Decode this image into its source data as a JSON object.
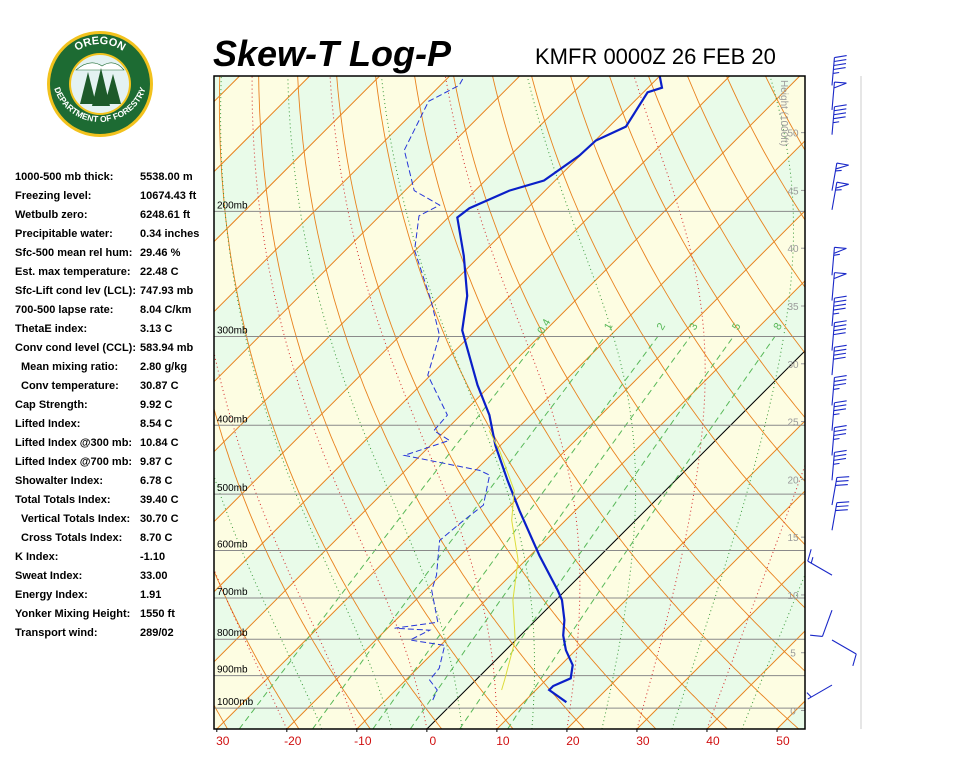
{
  "logo": {
    "top": "OREGON",
    "bottom": "DEPARTMENT OF FORESTRY"
  },
  "indices": [
    {
      "label": "1000-500 mb thick:",
      "value": "5538.00 m"
    },
    {
      "label": "Freezing level:",
      "value": "10674.43 ft"
    },
    {
      "label": "Wetbulb zero:",
      "value": "6248.61 ft"
    },
    {
      "label": "Precipitable water:",
      "value": "0.34 inches"
    },
    {
      "label": "Sfc-500 mean rel hum:",
      "value": "29.46 %"
    },
    {
      "label": "Est. max temperature:",
      "value": "22.48 C"
    },
    {
      "label": "Sfc-Lift cond lev (LCL):",
      "value": "747.93 mb"
    },
    {
      "label": "700-500 lapse rate:",
      "value": "8.04 C/km"
    },
    {
      "label": "ThetaE index:",
      "value": "3.13 C"
    },
    {
      "label": "Conv cond level (CCL):",
      "value": "583.94 mb",
      "sub": [
        {
          "label": "Mean mixing ratio:",
          "value": "2.80 g/kg"
        },
        {
          "label": "Conv temperature:",
          "value": "30.87 C"
        }
      ]
    },
    {
      "label": "Cap Strength:",
      "value": "9.92 C"
    },
    {
      "label": "Lifted Index:",
      "value": "8.54 C"
    },
    {
      "label": "Lifted Index @300 mb:",
      "value": "10.84 C"
    },
    {
      "label": "Lifted Index @700 mb:",
      "value": "9.87 C"
    },
    {
      "label": "Showalter Index:",
      "value": "6.78 C"
    },
    {
      "label": "Total Totals Index:",
      "value": "39.40 C",
      "sub": [
        {
          "label": "Vertical Totals Index:",
          "value": "30.70 C"
        },
        {
          "label": "Cross Totals Index:",
          "value": "8.70 C"
        }
      ]
    },
    {
      "label": "K Index:",
      "value": "-1.10"
    },
    {
      "label": "Sweat Index:",
      "value": "33.00"
    },
    {
      "label": "Energy Index:",
      "value": "1.91"
    },
    {
      "label": "Yonker Mixing Height:",
      "value": "1550 ft"
    },
    {
      "label": "Transport wind:",
      "value": "289/02"
    }
  ],
  "chart_data": {
    "type": "skewt",
    "title": "Skew-T Log-P",
    "subtitle": "KMFR 0000Z 26 FEB 20",
    "xlim": [
      -30.4,
      54
    ],
    "xticks": [
      {
        "value": -30,
        "label": "30"
      },
      -20,
      -10,
      0,
      10,
      20,
      30,
      40,
      50
    ],
    "plim": [
      1070,
      129
    ],
    "pticks": [
      {
        "value": 1000,
        "label": "1000mb"
      },
      {
        "value": 900,
        "label": "900mb"
      },
      {
        "value": 800,
        "label": "800mb"
      },
      {
        "value": 700,
        "label": "700mb"
      },
      {
        "value": 600,
        "label": "600mb"
      },
      {
        "value": 500,
        "label": "500mb"
      },
      {
        "value": 400,
        "label": "400mb"
      },
      {
        "value": 300,
        "label": "300mb"
      },
      {
        "value": 200,
        "label": "200mb"
      }
    ],
    "y2label": "Height (1000ft)",
    "y2lim": [
      -1.6,
      54.9
    ],
    "y2ticks": [
      0,
      5,
      10,
      15,
      20,
      25,
      30,
      35,
      40,
      45,
      50
    ],
    "mixing_ratios": [
      0.4,
      1,
      2,
      3,
      5,
      8
    ],
    "series": [
      {
        "color": "#0a1fc8",
        "style": "solid",
        "pressure": [
          981,
          943,
          931,
          908,
          870,
          829,
          790,
          752,
          705,
          683,
          610,
          527,
          478,
          427,
          387,
          351,
          294,
          263,
          231,
          204,
          198,
          187,
          181,
          167,
          159,
          152,
          136,
          134,
          129
        ],
        "values": [
          16.1,
          11.9,
          11.9,
          13.3,
          11.7,
          8.6,
          6.1,
          4.1,
          0.9,
          -1.1,
          -8.7,
          -18,
          -24,
          -30.7,
          -35.9,
          -41.9,
          -51.9,
          -56.1,
          -62.3,
          -68.7,
          -68.3,
          -65.1,
          -61.6,
          -60.1,
          -59.9,
          -57.6,
          -59.4,
          -58,
          -60
        ]
      },
      {
        "color": "#2535d8",
        "style": "dashed",
        "pressure": [
          974,
          943,
          913,
          879,
          816,
          802,
          777,
          772,
          757,
          683,
          650,
          581,
          548,
          518,
          470,
          463,
          441,
          420,
          407,
          387,
          340,
          299,
          267,
          227,
          203,
          196,
          187,
          164,
          140,
          133,
          129
        ],
        "values": [
          -3.3,
          -4.1,
          -6.6,
          -6.9,
          -9.4,
          -15.1,
          -13.7,
          -19,
          -13.7,
          -19.1,
          -20.6,
          -25.1,
          -24.6,
          -23.9,
          -27.3,
          -29.4,
          -42.3,
          -38,
          -41.6,
          -41.9,
          -50.4,
          -54.4,
          -60.6,
          -70.1,
          -74.4,
          -73,
          -78.7,
          -85.9,
          -89.4,
          -87.3,
          -87.9
        ]
      },
      {
        "color": "#dcdc3a",
        "style": "solid",
        "pressure": [
          943,
          913,
          802,
          705,
          619,
          544,
          494,
          434,
          407
        ],
        "values": [
          5.1,
          4.1,
          -0.1,
          -6.1,
          -11.1,
          -17.7,
          -21.6,
          -29.4,
          -33.7
        ]
      }
    ],
    "winds": {
      "pressure": [
        133,
        144,
        156,
        187,
        199,
        246,
        267,
        290,
        314,
        340,
        375,
        407,
        441,
        478,
        518,
        562,
        650,
        728,
        802,
        928
      ],
      "direction": [
        5,
        5,
        5,
        10,
        10,
        5,
        5,
        5,
        5,
        5,
        5,
        5,
        5,
        5,
        10,
        10,
        300,
        200,
        120,
        240
      ],
      "speed": [
        45,
        50,
        45,
        55,
        55,
        55,
        50,
        45,
        40,
        40,
        35,
        35,
        35,
        35,
        30,
        30,
        15,
        10,
        10,
        5
      ]
    },
    "grid": true
  }
}
